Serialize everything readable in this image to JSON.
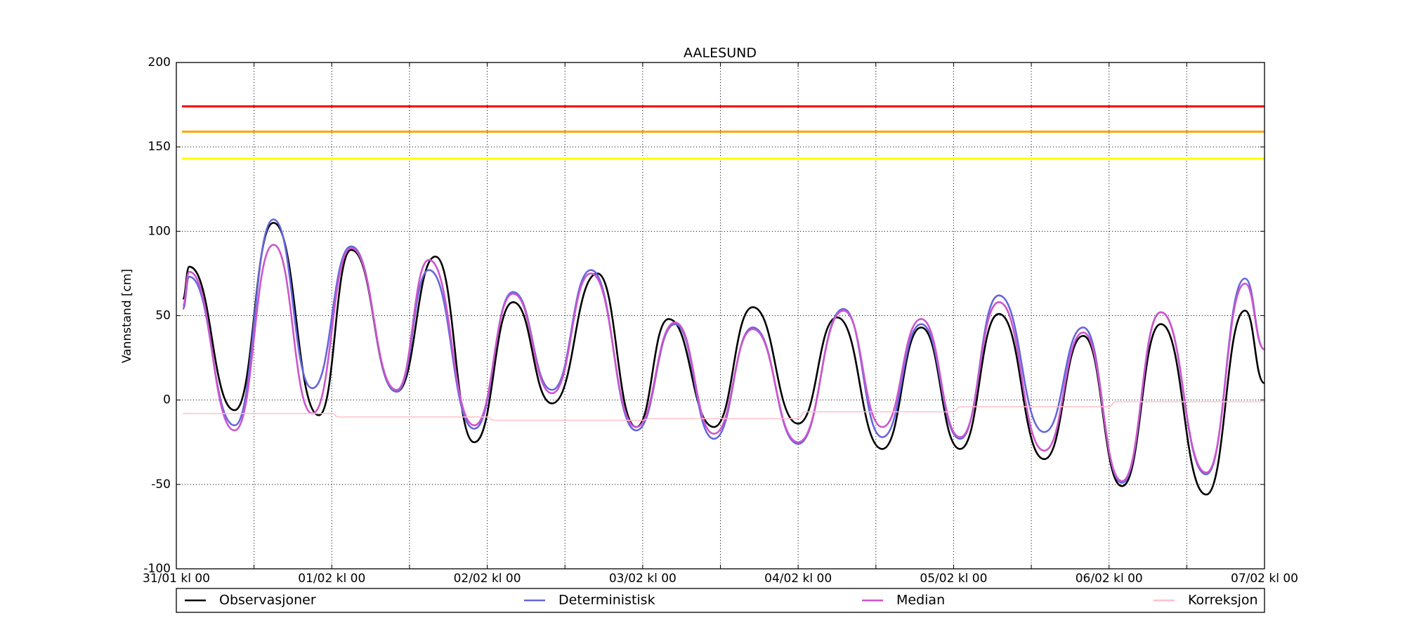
{
  "chart_data": {
    "type": "line",
    "title": "AALESUND",
    "ylabel": "Vannstand [cm]",
    "xlim": [
      0,
      168
    ],
    "ylim": [
      -100,
      200
    ],
    "xticks": [
      {
        "value": 0,
        "label": "31/01 kl 00"
      },
      {
        "value": 12,
        "label": null
      },
      {
        "value": 24,
        "label": "01/02 kl 00"
      },
      {
        "value": 36,
        "label": null
      },
      {
        "value": 48,
        "label": "02/02 kl 00"
      },
      {
        "value": 60,
        "label": null
      },
      {
        "value": 72,
        "label": "03/02 kl 00"
      },
      {
        "value": 84,
        "label": null
      },
      {
        "value": 96,
        "label": "04/02 kl 00"
      },
      {
        "value": 108,
        "label": null
      },
      {
        "value": 120,
        "label": "05/02 kl 00"
      },
      {
        "value": 132,
        "label": null
      },
      {
        "value": 144,
        "label": "06/02 kl 00"
      },
      {
        "value": 156,
        "label": null
      },
      {
        "value": 168,
        "label": "07/02 kl 00"
      }
    ],
    "yticks": [
      -100,
      -50,
      0,
      50,
      100,
      150,
      200
    ],
    "grid": true,
    "legend": "bottom",
    "thresholds": [
      {
        "value": 174,
        "color": "#ff0000"
      },
      {
        "value": 159,
        "color": "#ffa500"
      },
      {
        "value": 143,
        "color": "#ffff00"
      }
    ],
    "series": [
      {
        "name": "Observasjoner",
        "color": "#000000",
        "x": [
          1,
          2,
          9,
          15,
          22,
          27,
          34,
          40,
          46,
          52,
          58,
          65,
          71,
          76,
          83,
          89,
          96,
          102,
          109,
          115,
          121,
          127,
          134,
          140,
          146,
          152,
          159,
          165,
          168
        ],
        "values": [
          60,
          79,
          -6,
          105,
          -9,
          89,
          5,
          85,
          -25,
          58,
          -2,
          75,
          -16,
          48,
          -16,
          55,
          -14,
          49,
          -29,
          43,
          -29,
          51,
          -35,
          38,
          -51,
          45,
          -56,
          53,
          10
        ]
      },
      {
        "name": "Deterministisk",
        "color": "#6666dd",
        "x": [
          1,
          2,
          9,
          15,
          21,
          27,
          34,
          39,
          46,
          52,
          58,
          64,
          71,
          77,
          83,
          89,
          96,
          103,
          109,
          115,
          121,
          127,
          134,
          140,
          146,
          152,
          159,
          165,
          168
        ],
        "values": [
          54,
          73,
          -15,
          107,
          7,
          91,
          5,
          77,
          -17,
          64,
          6,
          77,
          -18,
          45,
          -23,
          43,
          -26,
          54,
          -22,
          45,
          -23,
          62,
          -19,
          43,
          -49,
          52,
          -44,
          72,
          30
        ]
      },
      {
        "name": "Median",
        "color": "#cc55cc",
        "x": [
          1,
          2,
          9,
          15,
          21,
          27,
          34,
          39,
          46,
          52,
          58,
          64,
          71,
          77,
          83,
          89,
          96,
          103,
          109,
          115,
          121,
          127,
          134,
          140,
          146,
          152,
          159,
          165,
          168
        ],
        "values": [
          56,
          76,
          -18,
          92,
          -8,
          90,
          6,
          83,
          -15,
          63,
          4,
          75,
          -16,
          46,
          -20,
          42,
          -25,
          53,
          -16,
          48,
          -22,
          58,
          -30,
          40,
          -48,
          52,
          -43,
          69,
          30
        ]
      },
      {
        "name": "Korreksjon",
        "color": "#ffc0cb",
        "x": [
          1,
          24,
          25,
          48,
          49,
          72,
          73,
          96,
          97,
          120,
          121,
          144,
          145,
          168
        ],
        "values": [
          -8,
          -8,
          -10,
          -10,
          -12,
          -12,
          -11,
          -11,
          -7,
          -7,
          -4,
          -4,
          -1,
          -1
        ]
      }
    ]
  }
}
